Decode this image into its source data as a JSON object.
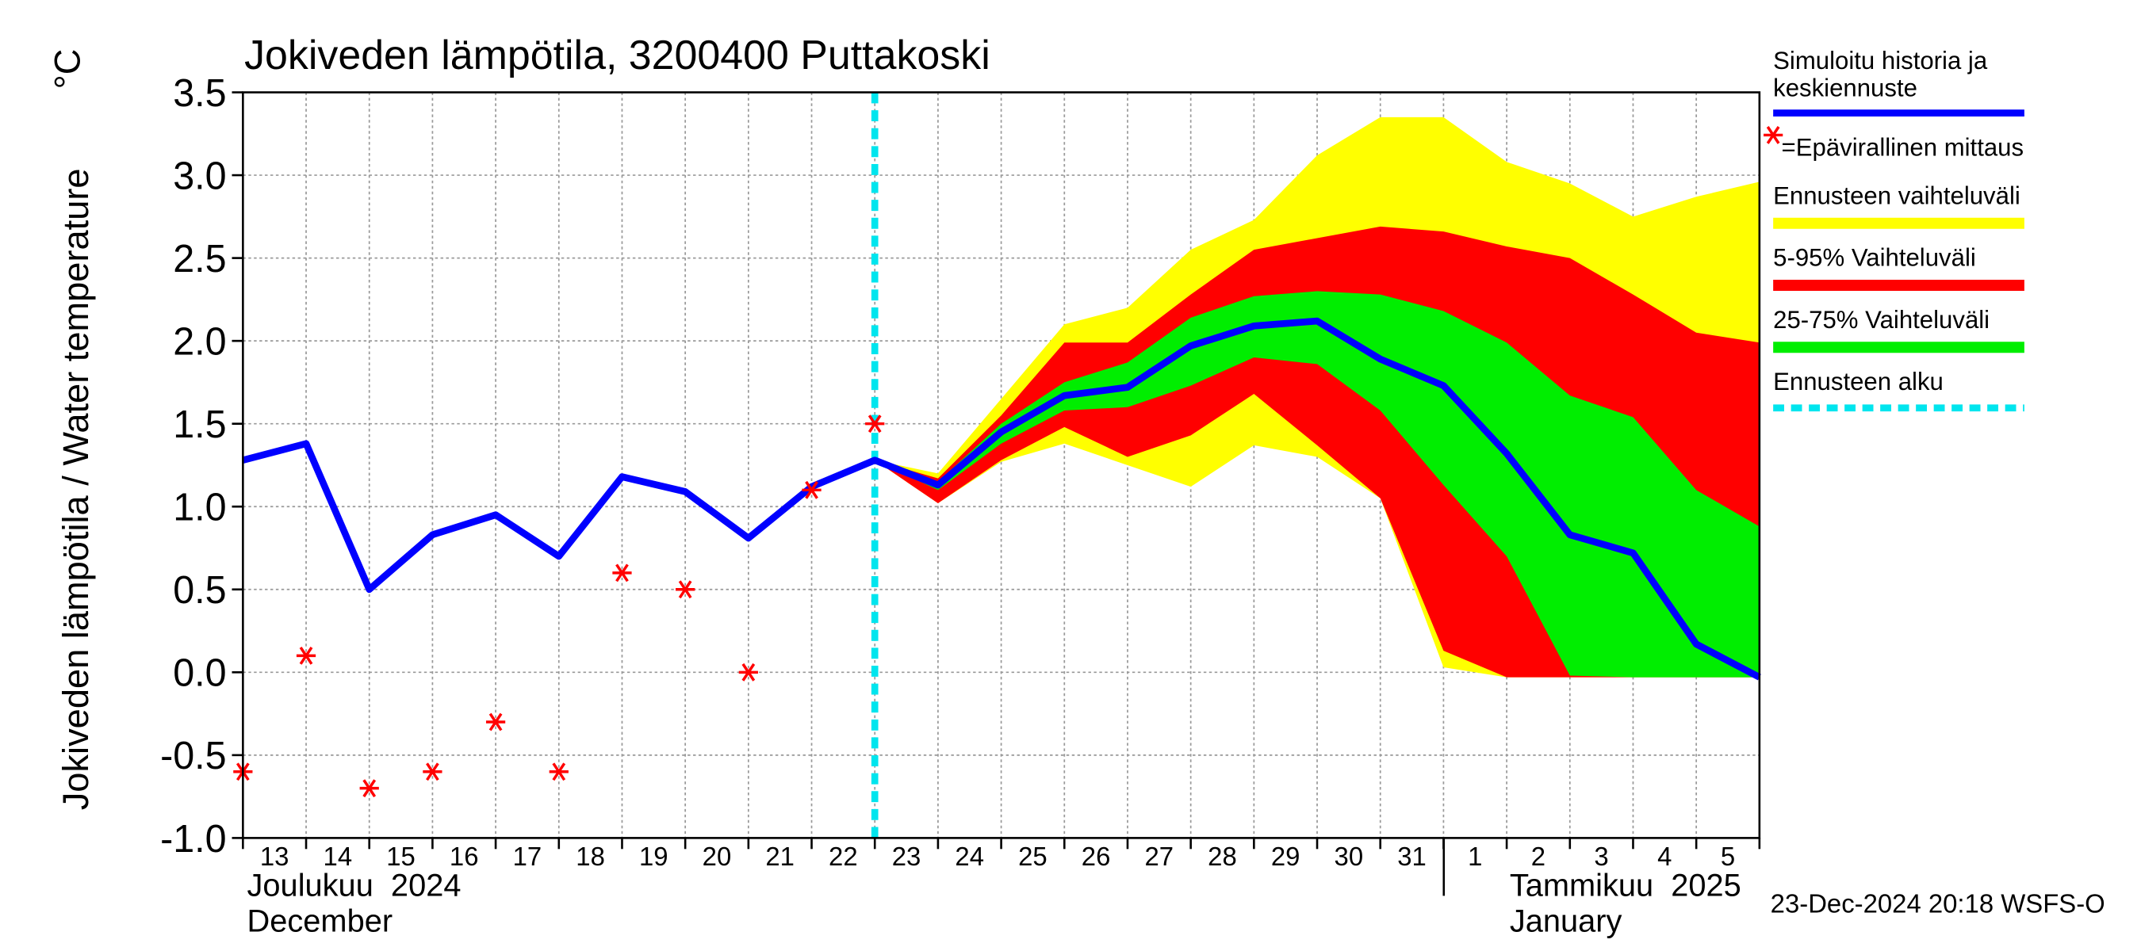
{
  "chart_data": {
    "type": "line",
    "title": "Jokiveden lämpötila, 3200400 Puttakoski",
    "ylabel": "Jokiveden lämpötila / Water temperature",
    "yunit": "°C",
    "categories": [
      "13",
      "14",
      "15",
      "16",
      "17",
      "18",
      "19",
      "20",
      "21",
      "22",
      "23",
      "24",
      "25",
      "26",
      "27",
      "28",
      "29",
      "30",
      "31",
      "1",
      "2",
      "3",
      "4",
      "5",
      null
    ],
    "months": [
      {
        "name": "Joulukuu  2024",
        "name_en": "December"
      },
      {
        "name": "Tammikuu  2025",
        "name_en": "January"
      }
    ],
    "ylim": [
      -1.0,
      3.5
    ],
    "yticks": [
      3.5,
      {
        "value": 3,
        "label": "3.0"
      },
      2.5,
      {
        "value": 2,
        "label": "2.0"
      },
      1.5,
      {
        "value": 1,
        "label": "1.0"
      },
      0.5,
      {
        "value": 0,
        "label": "0.0"
      },
      -0.5,
      {
        "value": -1,
        "label": "-1.0"
      }
    ],
    "grid": true,
    "bands": [
      {
        "name": "Ennusteen vaihteluväli",
        "color": "#ffff00",
        "upper": [
          null,
          null,
          null,
          null,
          null,
          null,
          null,
          null,
          null,
          null,
          1.28,
          1.2,
          1.65,
          2.1,
          2.2,
          2.55,
          2.73,
          3.12,
          3.35,
          3.35,
          3.08,
          2.95,
          2.75,
          2.87,
          2.96
        ],
        "lower": [
          null,
          null,
          null,
          null,
          null,
          null,
          null,
          null,
          null,
          null,
          1.28,
          1.02,
          1.27,
          1.38,
          1.25,
          1.12,
          1.37,
          1.3,
          1.05,
          0.03,
          -0.03,
          -0.03,
          -0.03,
          -0.03,
          -0.03
        ]
      },
      {
        "name": "5-95% Vaihteluväli",
        "color": "#ff0000",
        "upper": [
          null,
          null,
          null,
          null,
          null,
          null,
          null,
          null,
          null,
          null,
          1.28,
          1.17,
          1.55,
          1.99,
          1.99,
          2.28,
          2.55,
          2.62,
          2.69,
          2.66,
          2.57,
          2.5,
          2.28,
          2.05,
          1.99
        ],
        "lower": [
          null,
          null,
          null,
          null,
          null,
          null,
          null,
          null,
          null,
          null,
          1.28,
          1.02,
          1.28,
          1.48,
          1.3,
          1.43,
          1.68,
          1.37,
          1.05,
          0.13,
          -0.03,
          -0.03,
          -0.03,
          -0.03,
          -0.03
        ]
      },
      {
        "name": "25-75% Vaihteluväli",
        "color": "#00ee00",
        "upper": [
          null,
          null,
          null,
          null,
          null,
          null,
          null,
          null,
          null,
          null,
          1.28,
          1.15,
          1.5,
          1.75,
          1.87,
          2.14,
          2.27,
          2.3,
          2.28,
          2.18,
          1.99,
          1.67,
          1.54,
          1.1,
          0.88
        ],
        "lower": [
          null,
          null,
          null,
          null,
          null,
          null,
          null,
          null,
          null,
          null,
          1.28,
          1.1,
          1.38,
          1.58,
          1.6,
          1.73,
          1.9,
          1.86,
          1.58,
          1.13,
          0.7,
          -0.02,
          -0.03,
          -0.03,
          -0.03
        ]
      }
    ],
    "series": [
      {
        "name": "Simuloitu historia ja\nkeskiennuste",
        "color": "#0000ff",
        "values": [
          1.28,
          1.38,
          0.5,
          0.83,
          0.95,
          0.7,
          1.18,
          1.09,
          0.81,
          1.12,
          1.28,
          1.13,
          1.45,
          1.67,
          1.72,
          1.97,
          2.09,
          2.12,
          1.89,
          1.73,
          1.32,
          0.83,
          0.72,
          0.17,
          -0.03
        ]
      },
      {
        "name": "=Epävirallinen mittaus",
        "color": "#ff0000",
        "marker": "asterisk",
        "values": [
          -0.6,
          0.1,
          -0.7,
          -0.6,
          -0.3,
          -0.6,
          0.6,
          0.5,
          0.0,
          1.1,
          1.5,
          null,
          null,
          null,
          null,
          null,
          null,
          null,
          null,
          null,
          null,
          null,
          null,
          null,
          null
        ]
      }
    ],
    "forecast_start": {
      "name": "Ennusteen alku",
      "color": "#00e5ee",
      "at": "23"
    },
    "footer": "23-Dec-2024 20:18 WSFS-O"
  }
}
